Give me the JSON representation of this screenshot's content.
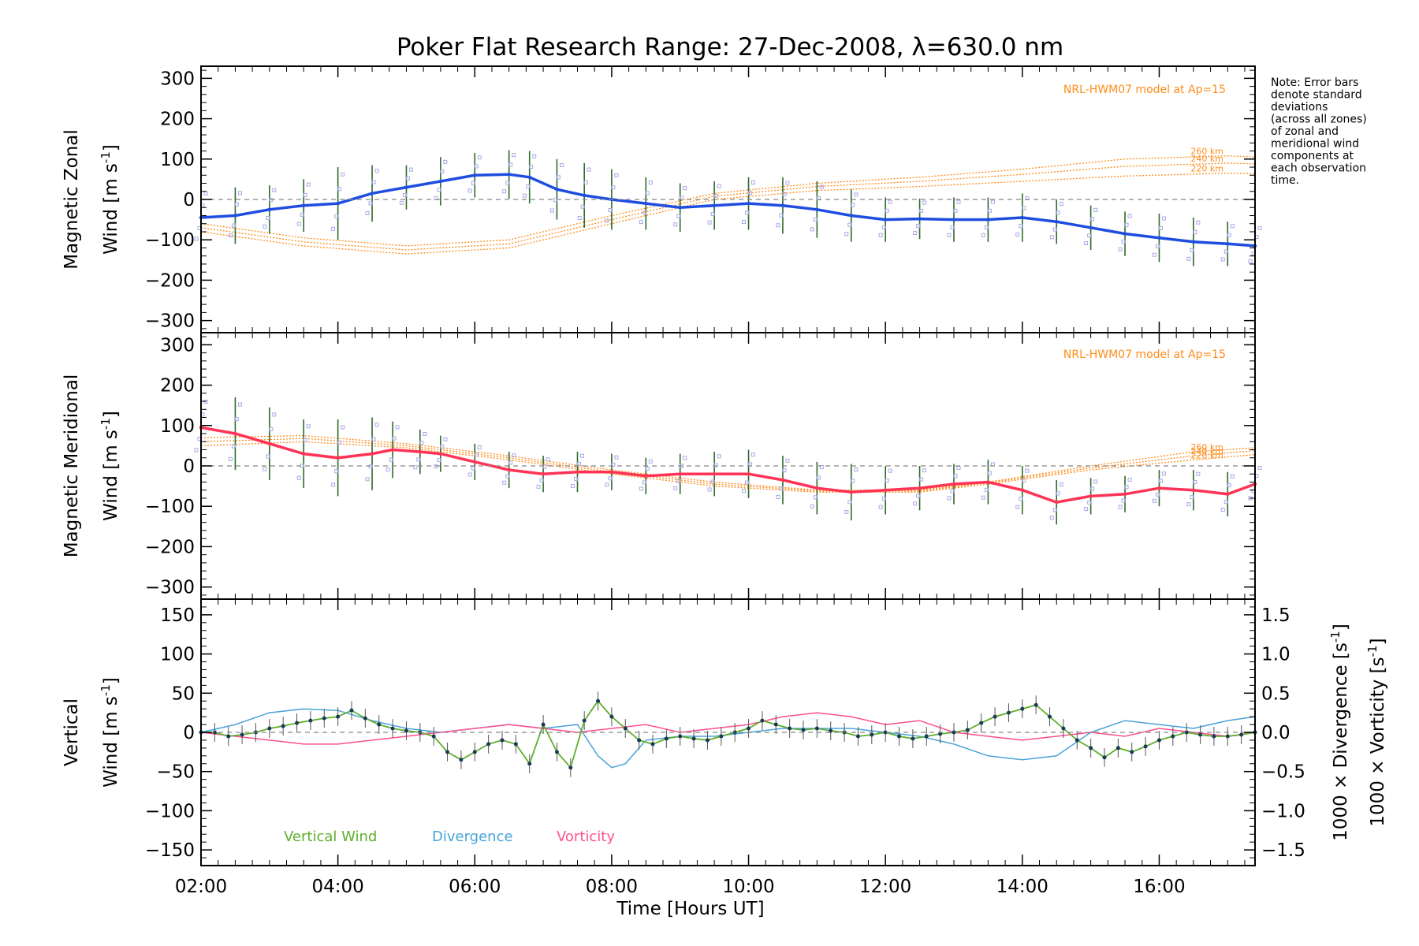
{
  "colors": {
    "zonal": "#1f4de0",
    "meridional": "#ff3355",
    "vertical": "#5fae2c",
    "divergence": "#4aa3d9",
    "vorticity": "#ff4f8f",
    "model": "#ff8c1a",
    "scatter": "#a8a8e8",
    "errorbar": "#2b6b2b",
    "zero": "#888888"
  },
  "title": "Poker Flat Research Range: 27-Dec-2008, λ=630.0 nm",
  "note": [
    "Note: Error bars",
    "denote standard",
    "deviations",
    "(across all zones)",
    "of zonal and",
    "meridional wind",
    "components at",
    "each observation",
    "time."
  ],
  "chart_data": [
    {
      "type": "line",
      "panel": "zonal",
      "ylabel_line1": "Magnetic Zonal",
      "ylabel_line2": "Wind [m s",
      "ylabel_sup": "-1",
      "ylabel_end": "]",
      "ylim": [
        -330,
        330
      ],
      "yticks": [
        300,
        200,
        100,
        0,
        -100,
        -200,
        -300
      ],
      "ytick_labels": [
        "300",
        "200",
        "100",
        "0",
        "−100",
        "−200",
        "−300"
      ],
      "xlim": [
        2.0,
        17.4
      ],
      "model_label": "NRL-HWM07 model at Ap=15",
      "model_curves": [
        {
          "name": "260 km",
          "x": [
            2.0,
            3.5,
            5.0,
            6.5,
            8.0,
            9.5,
            11.0,
            12.5,
            14.0,
            15.5,
            17.0,
            17.4
          ],
          "y": [
            -60,
            -95,
            -115,
            -100,
            -40,
            15,
            40,
            55,
            75,
            100,
            108,
            105
          ]
        },
        {
          "name": "240 km",
          "x": [
            2.0,
            3.5,
            5.0,
            6.5,
            8.0,
            9.5,
            11.0,
            12.5,
            14.0,
            15.5,
            17.0,
            17.4
          ],
          "y": [
            -70,
            -105,
            -125,
            -110,
            -50,
            8,
            32,
            45,
            62,
            82,
            90,
            88
          ]
        },
        {
          "name": "220 km",
          "x": [
            2.0,
            3.5,
            5.0,
            6.5,
            8.0,
            9.5,
            11.0,
            12.5,
            14.0,
            15.5,
            17.0,
            17.4
          ],
          "y": [
            -80,
            -115,
            -135,
            -120,
            -60,
            0,
            22,
            32,
            45,
            58,
            65,
            64
          ]
        }
      ],
      "series": {
        "x": [
          2.0,
          2.5,
          3.0,
          3.5,
          4.0,
          4.5,
          5.0,
          5.5,
          6.0,
          6.5,
          6.8,
          7.2,
          7.6,
          8.0,
          8.5,
          9.0,
          9.5,
          10.0,
          10.5,
          11.0,
          11.5,
          12.0,
          12.5,
          13.0,
          13.5,
          14.0,
          14.5,
          15.0,
          15.5,
          16.0,
          16.5,
          17.0,
          17.4
        ],
        "y": [
          -45,
          -40,
          -25,
          -15,
          -10,
          15,
          30,
          45,
          60,
          62,
          55,
          25,
          10,
          0,
          -10,
          -20,
          -15,
          -10,
          -15,
          -25,
          -40,
          -50,
          -48,
          -50,
          -50,
          -45,
          -55,
          -70,
          -85,
          -95,
          -105,
          -110,
          -115
        ],
        "error": [
          75,
          70,
          60,
          65,
          90,
          70,
          55,
          60,
          55,
          60,
          65,
          75,
          80,
          75,
          65,
          60,
          60,
          65,
          70,
          70,
          65,
          55,
          50,
          55,
          55,
          60,
          55,
          55,
          55,
          60,
          60,
          55,
          55
        ]
      }
    },
    {
      "type": "line",
      "panel": "meridional",
      "ylabel_line1": "Magnetic Meridional",
      "ylabel_line2": "Wind [m s",
      "ylabel_sup": "-1",
      "ylabel_end": "]",
      "ylim": [
        -330,
        330
      ],
      "yticks": [
        300,
        200,
        100,
        0,
        -100,
        -200,
        -300
      ],
      "ytick_labels": [
        "300",
        "200",
        "100",
        "0",
        "−100",
        "−200",
        "−300"
      ],
      "xlim": [
        2.0,
        17.4
      ],
      "model_label": "NRL-HWM07 model at Ap=15",
      "model_curves": [
        {
          "name": "260 km",
          "x": [
            2.0,
            3.5,
            5.0,
            6.5,
            8.0,
            9.5,
            11.0,
            12.5,
            13.5,
            15.0,
            16.5,
            17.4
          ],
          "y": [
            70,
            75,
            55,
            25,
            -10,
            -40,
            -60,
            -60,
            -40,
            0,
            35,
            45
          ]
        },
        {
          "name": "240 km",
          "x": [
            2.0,
            3.5,
            5.0,
            6.5,
            8.0,
            9.5,
            11.0,
            12.5,
            13.5,
            15.0,
            16.5,
            17.4
          ],
          "y": [
            60,
            68,
            50,
            20,
            -15,
            -45,
            -62,
            -62,
            -42,
            -5,
            25,
            38
          ]
        },
        {
          "name": "220 km",
          "x": [
            2.0,
            3.5,
            5.0,
            6.5,
            8.0,
            9.5,
            11.0,
            12.5,
            13.5,
            15.0,
            16.5,
            17.4
          ],
          "y": [
            50,
            60,
            45,
            15,
            -20,
            -50,
            -65,
            -65,
            -45,
            -10,
            15,
            28
          ]
        }
      ],
      "series": {
        "x": [
          2.0,
          2.5,
          3.0,
          3.5,
          4.0,
          4.5,
          4.8,
          5.2,
          5.5,
          6.0,
          6.5,
          7.0,
          7.5,
          8.0,
          8.5,
          9.0,
          9.5,
          10.0,
          10.5,
          11.0,
          11.5,
          12.0,
          12.5,
          13.0,
          13.5,
          14.0,
          14.5,
          15.0,
          15.5,
          16.0,
          16.5,
          17.0,
          17.4
        ],
        "y": [
          95,
          80,
          55,
          30,
          20,
          30,
          40,
          35,
          30,
          10,
          -10,
          -20,
          -15,
          -15,
          -25,
          -20,
          -20,
          -20,
          -35,
          -55,
          -65,
          -60,
          -55,
          -45,
          -40,
          -60,
          -90,
          -75,
          -70,
          -55,
          -60,
          -70,
          -45
        ],
        "error": [
          80,
          90,
          90,
          85,
          95,
          90,
          70,
          55,
          45,
          45,
          45,
          45,
          50,
          45,
          45,
          50,
          55,
          60,
          60,
          65,
          70,
          60,
          55,
          50,
          55,
          60,
          55,
          45,
          45,
          45,
          50,
          55,
          50
        ]
      }
    },
    {
      "type": "line",
      "panel": "vertical",
      "ylabel_line1": "Vertical",
      "ylabel_line2": "Wind [m s",
      "ylabel_sup": "-1",
      "ylabel_end": "]",
      "ylim": [
        -170,
        170
      ],
      "yticks": [
        150,
        100,
        50,
        0,
        -50,
        -100,
        -150
      ],
      "ytick_labels": [
        "150",
        "100",
        "50",
        "0",
        "−50",
        "−100",
        "−150"
      ],
      "right_ylim": [
        -1.7,
        1.7
      ],
      "right_yticks": [
        1.5,
        1.0,
        0.5,
        0.0,
        -0.5,
        -1.0,
        -1.5
      ],
      "right_ytick_labels": [
        "1.5",
        "1.0",
        "0.5",
        "0.0",
        "−0.5",
        "−1.0",
        "−1.5"
      ],
      "right_label_div": "1000 × Divergence [s",
      "right_label_vor": "1000 × Vorticity [s",
      "right_label_sup": "-1",
      "right_label_end": "]",
      "xlim": [
        2.0,
        17.4
      ],
      "xticks": [
        2,
        4,
        6,
        8,
        10,
        12,
        14,
        16
      ],
      "xtick_labels": [
        "02:00",
        "04:00",
        "06:00",
        "08:00",
        "10:00",
        "12:00",
        "14:00",
        "16:00"
      ],
      "xlabel": "Time [Hours UT]",
      "legend": [
        "Vertical Wind",
        "Divergence",
        "Vorticity"
      ],
      "vertical_wind": {
        "x": [
          2.0,
          2.2,
          2.4,
          2.6,
          2.8,
          3.0,
          3.2,
          3.4,
          3.6,
          3.8,
          4.0,
          4.2,
          4.4,
          4.6,
          4.8,
          5.0,
          5.2,
          5.4,
          5.6,
          5.8,
          6.0,
          6.2,
          6.4,
          6.6,
          6.8,
          7.0,
          7.2,
          7.4,
          7.6,
          7.8,
          8.0,
          8.2,
          8.4,
          8.6,
          8.8,
          9.0,
          9.2,
          9.4,
          9.6,
          9.8,
          10.0,
          10.2,
          10.4,
          10.6,
          10.8,
          11.0,
          11.2,
          11.4,
          11.6,
          11.8,
          12.0,
          12.2,
          12.4,
          12.6,
          12.8,
          13.0,
          13.2,
          13.4,
          13.6,
          13.8,
          14.0,
          14.2,
          14.4,
          14.6,
          14.8,
          15.0,
          15.2,
          15.4,
          15.6,
          15.8,
          16.0,
          16.2,
          16.4,
          16.6,
          16.8,
          17.0,
          17.2,
          17.4
        ],
        "y": [
          0,
          0,
          -5,
          -3,
          0,
          5,
          8,
          12,
          15,
          18,
          20,
          28,
          18,
          10,
          5,
          2,
          0,
          -5,
          -25,
          -35,
          -25,
          -15,
          -10,
          -15,
          -40,
          10,
          -25,
          -45,
          15,
          40,
          20,
          5,
          -10,
          -15,
          -8,
          -5,
          -8,
          -10,
          -5,
          0,
          5,
          15,
          10,
          5,
          3,
          5,
          2,
          0,
          -5,
          -3,
          0,
          -5,
          -8,
          -5,
          -2,
          0,
          3,
          12,
          20,
          25,
          30,
          35,
          20,
          5,
          -10,
          -20,
          -32,
          -20,
          -25,
          -18,
          -10,
          -5,
          0,
          -3,
          -5,
          -5,
          -3,
          0
        ]
      },
      "divergence": {
        "x": [
          2.0,
          2.5,
          3.0,
          3.5,
          4.0,
          4.5,
          5.0,
          5.5,
          6.0,
          6.5,
          7.0,
          7.5,
          7.8,
          8.0,
          8.2,
          8.5,
          9.0,
          9.5,
          10.0,
          10.5,
          11.0,
          11.5,
          12.0,
          12.5,
          13.0,
          13.5,
          14.0,
          14.5,
          15.0,
          15.5,
          16.0,
          16.5,
          17.0,
          17.4
        ],
        "y": [
          0.0,
          0.1,
          0.25,
          0.3,
          0.28,
          0.15,
          0.05,
          0.0,
          0.05,
          0.1,
          0.05,
          0.1,
          -0.3,
          -0.45,
          -0.4,
          -0.1,
          -0.05,
          -0.05,
          0.0,
          0.05,
          0.05,
          0.05,
          0.0,
          -0.05,
          -0.15,
          -0.3,
          -0.35,
          -0.3,
          0.0,
          0.15,
          0.1,
          0.05,
          0.15,
          0.2
        ]
      },
      "vorticity": {
        "x": [
          2.0,
          2.5,
          3.0,
          3.5,
          4.0,
          4.5,
          5.0,
          5.5,
          6.0,
          6.5,
          7.0,
          7.5,
          8.0,
          8.5,
          9.0,
          9.5,
          10.0,
          10.5,
          11.0,
          11.5,
          12.0,
          12.5,
          13.0,
          13.5,
          14.0,
          14.5,
          15.0,
          15.5,
          16.0,
          16.5,
          17.0,
          17.4
        ],
        "y": [
          0.0,
          -0.05,
          -0.1,
          -0.15,
          -0.15,
          -0.1,
          -0.05,
          0.0,
          0.05,
          0.1,
          0.05,
          0.0,
          0.05,
          0.1,
          0.0,
          0.05,
          0.1,
          0.2,
          0.25,
          0.2,
          0.1,
          0.15,
          0.0,
          -0.05,
          -0.1,
          -0.05,
          0.0,
          -0.05,
          0.05,
          0.0,
          -0.05,
          0.0
        ]
      }
    }
  ]
}
